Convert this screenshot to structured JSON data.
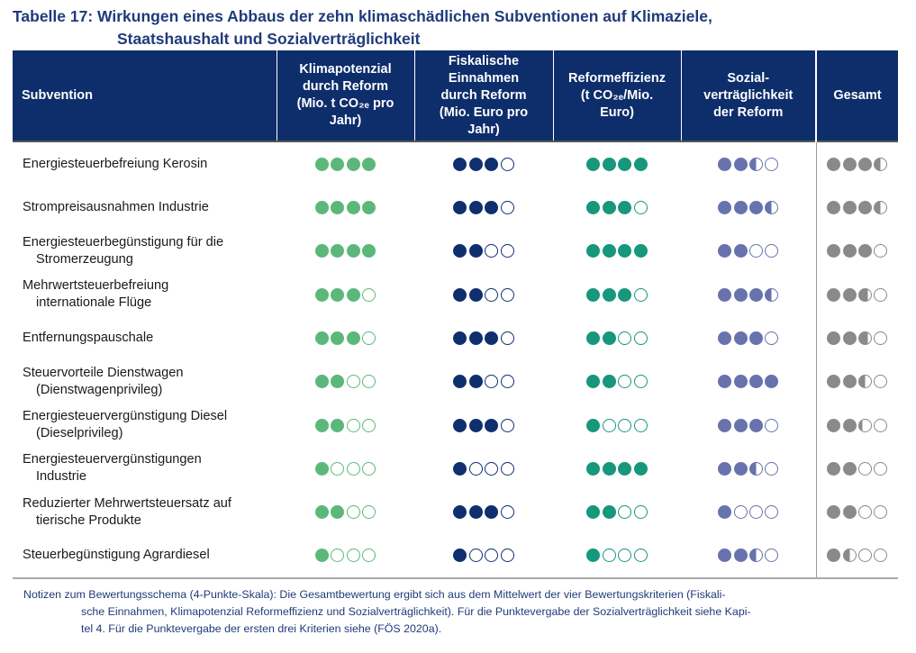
{
  "title": {
    "line1": "Tabelle 17: Wirkungen eines Abbaus der zehn klimaschädlichen Subventionen auf Klimaziele,",
    "line2": "Staatshaushalt und Sozialverträglichkeit"
  },
  "headers": {
    "subvention": "Subvention",
    "klima": [
      "Klimapotenzial",
      "durch Reform",
      "(Mio. t CO₂ₑ pro",
      "Jahr)"
    ],
    "fiskal": [
      "Fiskalische",
      "Einnahmen",
      "durch Reform",
      "(Mio. Euro pro",
      "Jahr)"
    ],
    "effizienz": [
      "Reformeffizienz",
      "(t CO₂ₑ/Mio.",
      "Euro)"
    ],
    "sozial": [
      "Sozial-",
      "verträglichkeit",
      "der Reform"
    ],
    "gesamt": "Gesamt"
  },
  "colors": {
    "klima": "#5bb87a",
    "fiskal": "#0f2f6e",
    "effizienz": "#17977b",
    "sozial": "#6872ad",
    "gesamt": "#8a8a8a"
  },
  "rows": [
    {
      "name": [
        "Energiesteuerbefreiung Kerosin"
      ],
      "klima": 4,
      "fiskal": 3,
      "effizienz": 4,
      "sozial": 2.5,
      "gesamt": 3.5
    },
    {
      "name": [
        "Strompreisausnahmen Industrie"
      ],
      "klima": 4,
      "fiskal": 3,
      "effizienz": 3,
      "sozial": 3.5,
      "gesamt": 3.5
    },
    {
      "name": [
        "Energiesteuerbegünstigung für die",
        "Stromerzeugung"
      ],
      "klima": 4,
      "fiskal": 2,
      "effizienz": 4,
      "sozial": 2,
      "gesamt": 3
    },
    {
      "name": [
        "Mehrwertsteuerbefreiung",
        "internationale Flüge"
      ],
      "klima": 3,
      "fiskal": 2,
      "effizienz": 3,
      "sozial": 3.5,
      "gesamt": 2.75
    },
    {
      "name": [
        "Entfernungspauschale"
      ],
      "klima": 3,
      "fiskal": 3,
      "effizienz": 2,
      "sozial": 3,
      "gesamt": 2.75
    },
    {
      "name": [
        "Steuervorteile Dienstwagen",
        "(Dienstwagenprivileg)"
      ],
      "klima": 2,
      "fiskal": 2,
      "effizienz": 2,
      "sozial": 4,
      "gesamt": 2.5
    },
    {
      "name": [
        "Energiesteuervergünstigung Diesel",
        "(Dieselprivileg)"
      ],
      "klima": 2,
      "fiskal": 3,
      "effizienz": 1,
      "sozial": 3,
      "gesamt": 2.25
    },
    {
      "name": [
        "Energiesteuervergünstigungen",
        "Industrie"
      ],
      "klima": 1,
      "fiskal": 1,
      "effizienz": 4,
      "sozial": 2.5,
      "gesamt": 2
    },
    {
      "name": [
        "Reduzierter Mehrwertsteuersatz auf",
        "tierische Produkte"
      ],
      "klima": 2,
      "fiskal": 3,
      "effizienz": 2,
      "sozial": 1,
      "gesamt": 2
    },
    {
      "name": [
        "Steuerbegünstigung Agrardiesel"
      ],
      "klima": 1,
      "fiskal": 1,
      "effizienz": 1,
      "sozial": 2.5,
      "gesamt": 1.5
    }
  ],
  "note": {
    "line1": "Notizen zum Bewertungsschema (4-Punkte-Skala): Die Gesamtbewertung ergibt sich aus dem Mittelwert der vier Bewertungskriterien (Fiskali-",
    "line2": "sche Einnahmen, Klimapotenzial Reformeffizienz und Sozialverträglichkeit). Für die Punktevergabe der Sozialverträglichkeit siehe Kapi-",
    "line3": "tel 4. Für die Punktevergabe der ersten drei Kriterien siehe (FÖS 2020a)."
  }
}
